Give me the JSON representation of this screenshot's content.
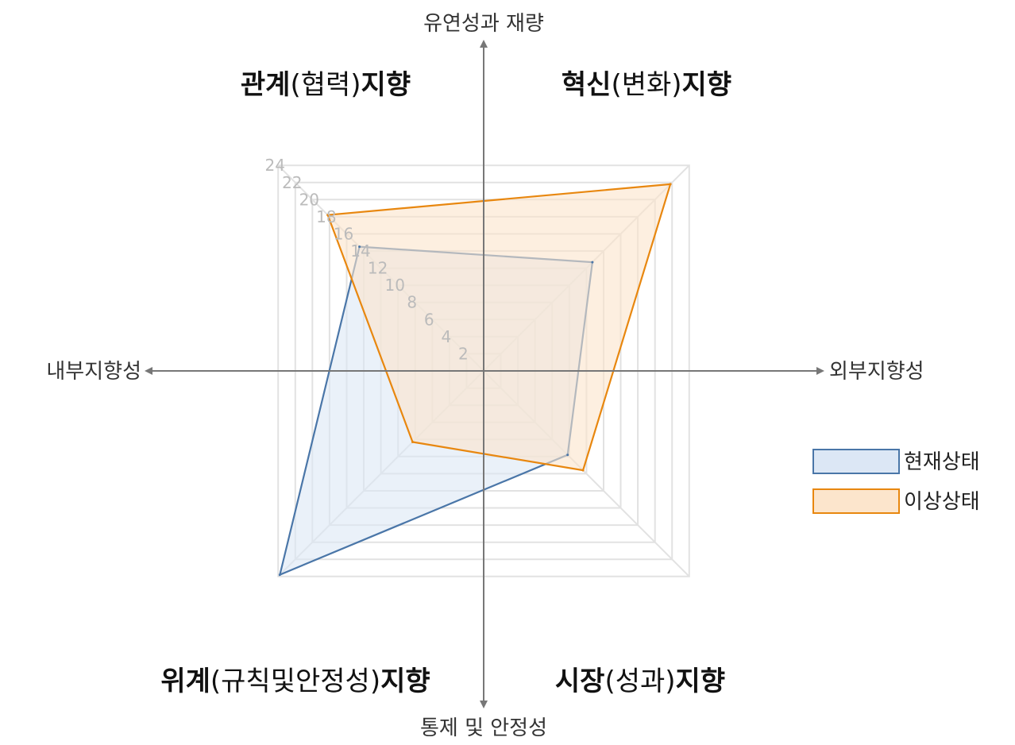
{
  "chart_data": {
    "type": "radar",
    "axes": [
      {
        "quadrant": "upper-left",
        "bold_pre": "관계",
        "normal": "(협력)",
        "bold_post": "지향"
      },
      {
        "quadrant": "upper-right",
        "bold_pre": "혁신",
        "normal": "(변화)",
        "bold_post": "지향"
      },
      {
        "quadrant": "lower-right",
        "bold_pre": "시장",
        "normal": "(성과)",
        "bold_post": "지향"
      },
      {
        "quadrant": "lower-left",
        "bold_pre": "위계",
        "normal": "(규칙및안정성)",
        "bold_post": "지향"
      }
    ],
    "dimension_labels": {
      "top": "유연성과 재량",
      "bottom": "통제 및 안정성",
      "left": "내부지향성",
      "right": "외부지향성"
    },
    "r_ticks": [
      2,
      4,
      6,
      8,
      10,
      12,
      14,
      16,
      18,
      20,
      22,
      24
    ],
    "r_range": [
      0,
      24
    ],
    "grid": true,
    "legend_position": "right",
    "series": [
      {
        "name": "현재상태",
        "values": [
          14.5,
          12.7,
          9.8,
          23.8
        ],
        "color": "#4a76a8",
        "fill": "#dce7f5"
      },
      {
        "name": "이상상태",
        "values": [
          18.2,
          21.8,
          11.6,
          8.3
        ],
        "color": "#e8870f",
        "fill": "#fce5cc"
      }
    ]
  }
}
